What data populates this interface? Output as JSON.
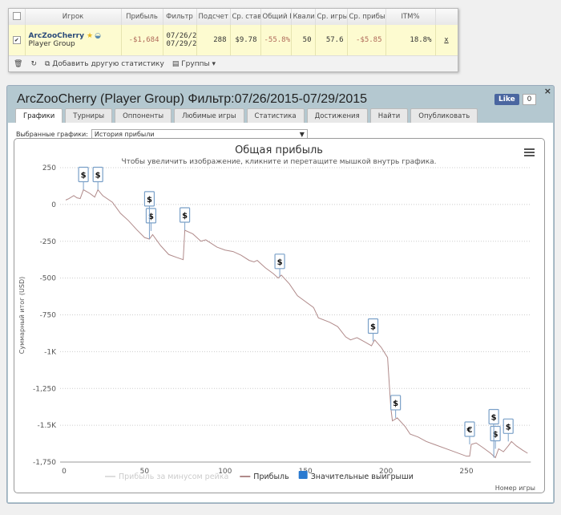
{
  "stats": {
    "headers": [
      "Игрок",
      "Прибыль",
      "Фильтр",
      "Подсчет",
      "Ср. ставк",
      "Общий R",
      "Квали",
      "Ср. игры",
      "Ср. прибы",
      "ITM%"
    ],
    "row": {
      "player": "ArcZooCherry",
      "group": "Player Group",
      "profit": "-$1,684",
      "filter1": "07/26/2",
      "filter2": "07/29/2",
      "count": "288",
      "avg_stake": "$9.78",
      "roi": "-55.8%",
      "qual": "50",
      "avg_games": "57.6",
      "avg_profit": "-$5.85",
      "itm": "18.8%",
      "remove": "x"
    },
    "footer": {
      "add": "Добавить другую статистику",
      "groups": "Группы"
    }
  },
  "dialog": {
    "title": "ArcZooCherry (Player Group) Фильтр:07/26/2015-07/29/2015",
    "like": "Like",
    "like_count": "0",
    "close": "×",
    "tabs": [
      "Графики",
      "Турниры",
      "Оппоненты",
      "Любимые игры",
      "Статистика",
      "Достижения",
      "Найти",
      "Опубликовать"
    ],
    "selector_label": "Выбранные графики:",
    "selector_value": "История прибыли"
  },
  "chart_data": {
    "type": "line",
    "title": "Общая прибыль",
    "subtitle": "Чтобы увеличить изображение, кликните и перетащите мышкой внутрь графика.",
    "ylabel": "Суммарный итог (USD)",
    "xlabel": "Номер игры",
    "xlim": [
      0,
      290
    ],
    "ylim": [
      -1750,
      250
    ],
    "xticks": [
      0,
      50,
      100,
      150,
      200,
      250
    ],
    "yticks": [
      {
        "v": 250,
        "l": "250"
      },
      {
        "v": 0,
        "l": "0"
      },
      {
        "v": -250,
        "l": "-250"
      },
      {
        "v": -500,
        "l": "-500"
      },
      {
        "v": -750,
        "l": "-750"
      },
      {
        "v": -1000,
        "l": "-1K"
      },
      {
        "v": -1250,
        "l": "-1,250"
      },
      {
        "v": -1500,
        "l": "-1.5K"
      },
      {
        "v": -1750,
        "l": "-1,750"
      }
    ],
    "legend": [
      "Прибыль за минусом рейка",
      "Прибыль",
      "Значительные выигрыши"
    ],
    "series": [
      {
        "name": "Прибыль",
        "color": "#b08a8a",
        "points": [
          [
            1,
            30
          ],
          [
            3,
            40
          ],
          [
            6,
            60
          ],
          [
            8,
            45
          ],
          [
            10,
            40
          ],
          [
            12,
            100
          ],
          [
            16,
            75
          ],
          [
            19,
            50
          ],
          [
            21,
            100
          ],
          [
            24,
            60
          ],
          [
            30,
            15
          ],
          [
            35,
            -60
          ],
          [
            40,
            -110
          ],
          [
            45,
            -170
          ],
          [
            50,
            -225
          ],
          [
            53,
            -235
          ],
          [
            55,
            -205
          ],
          [
            60,
            -280
          ],
          [
            65,
            -340
          ],
          [
            70,
            -360
          ],
          [
            74,
            -375
          ],
          [
            75,
            -175
          ],
          [
            80,
            -200
          ],
          [
            85,
            -250
          ],
          [
            88,
            -240
          ],
          [
            95,
            -290
          ],
          [
            100,
            -310
          ],
          [
            105,
            -320
          ],
          [
            110,
            -345
          ],
          [
            115,
            -380
          ],
          [
            118,
            -390
          ],
          [
            120,
            -380
          ],
          [
            125,
            -430
          ],
          [
            130,
            -470
          ],
          [
            133,
            -500
          ],
          [
            135,
            -480
          ],
          [
            140,
            -540
          ],
          [
            145,
            -620
          ],
          [
            150,
            -660
          ],
          [
            155,
            -700
          ],
          [
            158,
            -770
          ],
          [
            165,
            -800
          ],
          [
            170,
            -830
          ],
          [
            175,
            -900
          ],
          [
            178,
            -920
          ],
          [
            182,
            -905
          ],
          [
            187,
            -935
          ],
          [
            191,
            -960
          ],
          [
            193,
            -920
          ],
          [
            197,
            -970
          ],
          [
            201,
            -1040
          ],
          [
            203,
            -1380
          ],
          [
            204,
            -1470
          ],
          [
            207,
            -1450
          ],
          [
            212,
            -1510
          ],
          [
            215,
            -1560
          ],
          [
            220,
            -1580
          ],
          [
            225,
            -1610
          ],
          [
            230,
            -1630
          ],
          [
            240,
            -1670
          ],
          [
            250,
            -1710
          ],
          [
            252,
            -1710
          ],
          [
            253,
            -1630
          ],
          [
            256,
            -1620
          ],
          [
            260,
            -1650
          ],
          [
            265,
            -1690
          ],
          [
            268,
            -1720
          ],
          [
            270,
            -1660
          ],
          [
            273,
            -1680
          ],
          [
            276,
            -1640
          ],
          [
            278,
            -1610
          ],
          [
            281,
            -1640
          ],
          [
            285,
            -1670
          ],
          [
            288,
            -1690
          ]
        ]
      }
    ],
    "markers": [
      {
        "x": 12,
        "y": 100,
        "s": "$"
      },
      {
        "x": 21,
        "y": 100,
        "s": "$"
      },
      {
        "x": 54,
        "y": -180,
        "s": "$"
      },
      {
        "x": 53,
        "y": -235,
        "s": "$"
      },
      {
        "x": 75,
        "y": -175,
        "s": "$"
      },
      {
        "x": 134,
        "y": -490,
        "s": "$"
      },
      {
        "x": 192,
        "y": -930,
        "s": "$"
      },
      {
        "x": 206,
        "y": -1450,
        "s": "$"
      },
      {
        "x": 252,
        "y": -1630,
        "s": "€"
      },
      {
        "x": 268,
        "y": -1660,
        "s": "$"
      },
      {
        "x": 267,
        "y": -1720,
        "s": "$"
      },
      {
        "x": 276,
        "y": -1610,
        "s": "$"
      }
    ],
    "accent": "#2a7ad0"
  }
}
